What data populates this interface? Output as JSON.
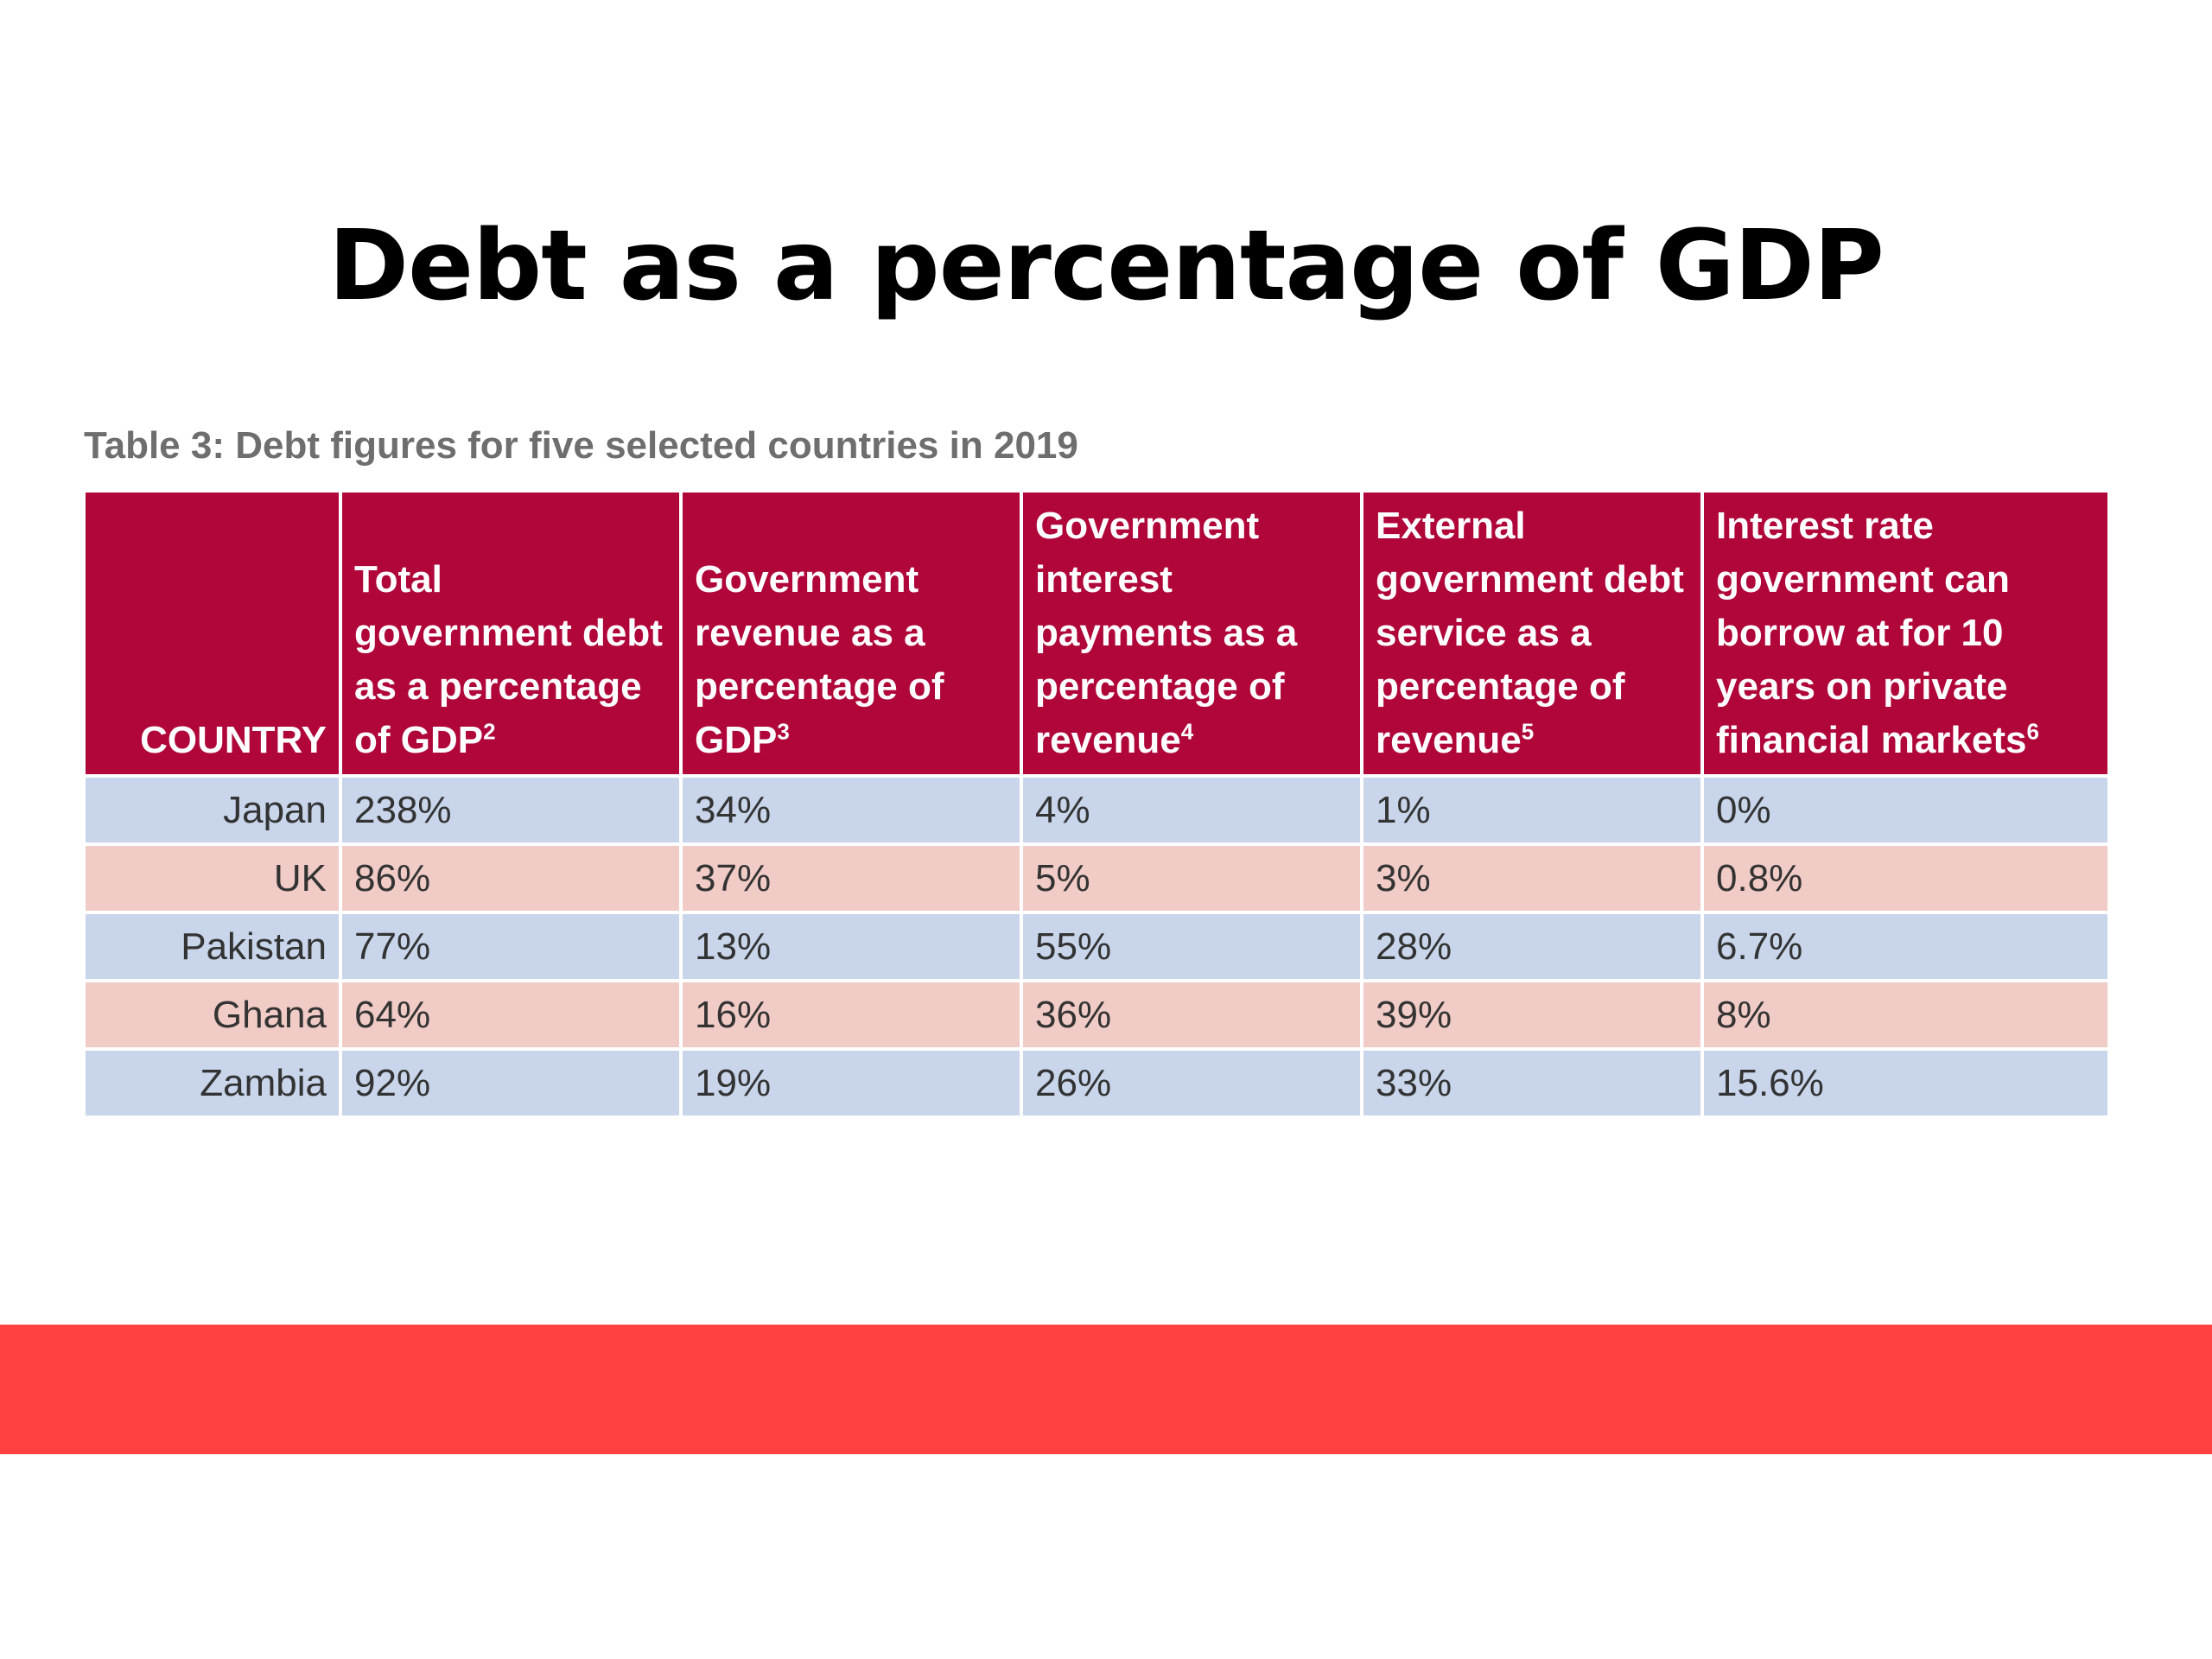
{
  "title": "Debt as a percentage of GDP",
  "caption": "Table 3: Debt figures for five selected countries in 2019",
  "colors": {
    "header_bg": "#b0063a",
    "row_blue": "#c8d5ea",
    "row_pink": "#f1cbc6",
    "band": "#ff4141"
  },
  "table": {
    "headers": [
      {
        "label": "COUNTRY",
        "sup": ""
      },
      {
        "label": "Total government debt as a percentage of GDP",
        "sup": "2"
      },
      {
        "label": "Government revenue as a percentage of GDP",
        "sup": "3"
      },
      {
        "label": "Government interest payments as a percentage of revenue",
        "sup": "4"
      },
      {
        "label": "External government debt service as a percentage of revenue",
        "sup": "5"
      },
      {
        "label": "Interest rate government can borrow at for 10 years on private financial markets",
        "sup": "6"
      }
    ],
    "rows": [
      {
        "country": "Japan",
        "values": [
          "238%",
          "34%",
          "4%",
          "1%",
          "0%"
        ]
      },
      {
        "country": "UK",
        "values": [
          "86%",
          "37%",
          "5%",
          "3%",
          "0.8%"
        ]
      },
      {
        "country": "Pakistan",
        "values": [
          "77%",
          "13%",
          "55%",
          "28%",
          "6.7%"
        ]
      },
      {
        "country": "Ghana",
        "values": [
          "64%",
          "16%",
          "36%",
          "39%",
          "8%"
        ]
      },
      {
        "country": "Zambia",
        "values": [
          "92%",
          "19%",
          "26%",
          "33%",
          "15.6%"
        ]
      }
    ]
  }
}
